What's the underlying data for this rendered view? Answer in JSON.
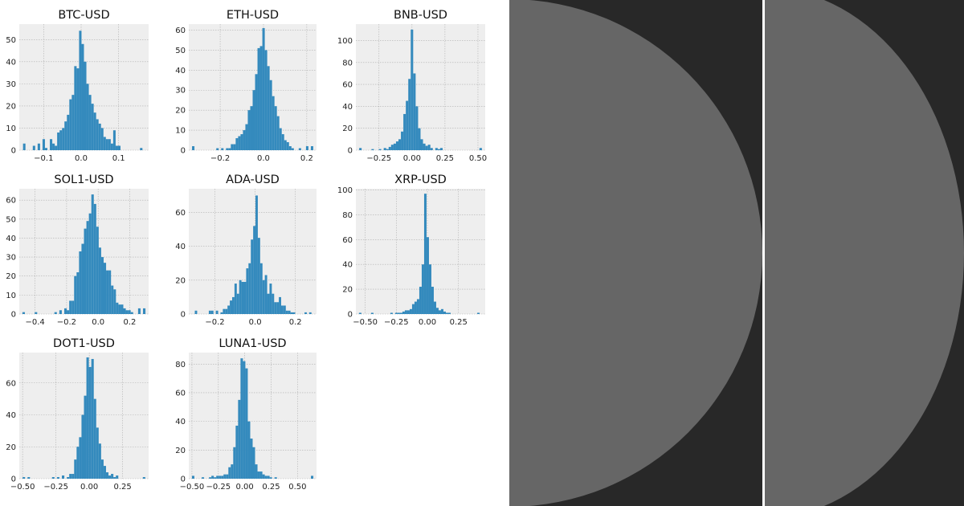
{
  "chart_data": [
    {
      "type": "histogram",
      "title": "BTC-USD",
      "color": "#348abd",
      "grid": true,
      "bins": [
        -0.155,
        -0.1485,
        -0.142,
        -0.1355,
        -0.129,
        -0.1225,
        -0.116,
        -0.1095,
        -0.103,
        -0.0965,
        -0.09,
        -0.0835,
        -0.077,
        -0.0705,
        -0.064,
        -0.0575,
        -0.051,
        -0.0445,
        -0.038,
        -0.0315,
        -0.025,
        -0.0185,
        -0.012,
        -0.0055,
        0.001,
        0.0075,
        0.014,
        0.0205,
        0.027,
        0.0335,
        0.04,
        0.0465,
        0.053,
        0.0595,
        0.066,
        0.0725,
        0.079,
        0.0855,
        0.092,
        0.0985,
        0.105,
        0.1115,
        0.118,
        0.1245,
        0.131,
        0.1375,
        0.144,
        0.1505,
        0.157,
        0.1635,
        0.17
      ],
      "values": [
        3,
        0,
        0,
        0,
        2,
        0,
        3,
        0,
        5,
        1,
        0,
        5,
        3,
        2,
        8,
        9,
        10,
        13,
        16,
        23,
        25,
        38,
        37,
        54,
        48,
        40,
        30,
        25,
        21,
        17,
        14,
        12,
        10,
        6,
        5,
        5,
        3,
        9,
        2,
        2,
        0,
        0,
        0,
        0,
        0,
        0,
        0,
        0,
        1,
        0
      ],
      "xlim": [
        -0.165,
        0.18
      ],
      "ylim": [
        0,
        57
      ],
      "xticks": [
        {
          "value": -0.1,
          "label": "−0.1"
        },
        {
          "value": 0,
          "label": "0.0"
        },
        0.1
      ],
      "yticks": [
        0,
        10,
        20,
        30,
        40,
        50
      ]
    },
    {
      "type": "histogram",
      "title": "ETH-USD",
      "color": "#348abd",
      "grid": true,
      "bins": [
        -0.33,
        -0.3188,
        -0.3076,
        -0.2964,
        -0.2852,
        -0.274,
        -0.2628,
        -0.2516,
        -0.2404,
        -0.2292,
        -0.218,
        -0.2068,
        -0.1956,
        -0.1844,
        -0.1732,
        -0.162,
        -0.1508,
        -0.1396,
        -0.1284,
        -0.1172,
        -0.106,
        -0.0948,
        -0.0836,
        -0.0724,
        -0.0612,
        -0.05,
        -0.0388,
        -0.0276,
        -0.0164,
        -0.0052,
        0.006,
        0.0172,
        0.0284,
        0.0396,
        0.0508,
        0.062,
        0.0732,
        0.0844,
        0.0956,
        0.1068,
        0.118,
        0.1292,
        0.1404,
        0.1516,
        0.1628,
        0.174,
        0.1852,
        0.1964,
        0.2076,
        0.2188,
        0.23
      ],
      "values": [
        2,
        0,
        0,
        0,
        0,
        0,
        0,
        0,
        0,
        0,
        1,
        0,
        1,
        0,
        1,
        1,
        3,
        3,
        6,
        7,
        8,
        10,
        13,
        20,
        22,
        30,
        38,
        51,
        52,
        61,
        50,
        42,
        35,
        27,
        22,
        17,
        11,
        8,
        5,
        4,
        2,
        1,
        0,
        0,
        1,
        0,
        0,
        2,
        0,
        2
      ],
      "xlim": [
        -0.345,
        0.245
      ],
      "ylim": [
        0,
        63
      ],
      "xticks": [
        {
          "value": -0.2,
          "label": "−0.2"
        },
        {
          "value": 0,
          "label": "0.0"
        },
        0.2
      ],
      "yticks": [
        0,
        10,
        20,
        30,
        40,
        50,
        60
      ]
    },
    {
      "type": "histogram",
      "title": "BNB-USD",
      "color": "#348abd",
      "grid": true,
      "bins": [
        -0.4,
        -0.3814,
        -0.3628,
        -0.3442,
        -0.3256,
        -0.307,
        -0.2884,
        -0.2698,
        -0.2512,
        -0.2326,
        -0.214,
        -0.1954,
        -0.1768,
        -0.1582,
        -0.1396,
        -0.121,
        -0.1024,
        -0.0838,
        -0.0652,
        -0.0466,
        -0.028,
        -0.0094,
        0.0092,
        0.0278,
        0.0464,
        0.065,
        0.0836,
        0.1022,
        0.1208,
        0.1394,
        0.158,
        0.1766,
        0.1952,
        0.2138,
        0.2324,
        0.251,
        0.2696,
        0.2882,
        0.3068,
        0.3254,
        0.344,
        0.3626,
        0.3812,
        0.3998,
        0.4184,
        0.437,
        0.4556,
        0.4742,
        0.4928,
        0.5114,
        0.53
      ],
      "values": [
        2,
        0,
        0,
        0,
        0,
        1,
        0,
        0,
        1,
        0,
        2,
        1,
        3,
        5,
        6,
        8,
        10,
        17,
        33,
        45,
        65,
        110,
        70,
        40,
        20,
        10,
        6,
        4,
        5,
        2,
        0,
        2,
        1,
        2,
        0,
        0,
        0,
        0,
        0,
        0,
        0,
        0,
        0,
        0,
        0,
        0,
        0,
        0,
        0,
        2
      ],
      "xlim": [
        -0.425,
        0.555
      ],
      "ylim": [
        0,
        115
      ],
      "xticks": [
        {
          "value": -0.25,
          "label": "−0.25"
        },
        {
          "value": 0,
          "label": "0.00"
        },
        0.25,
        {
          "value": 0.5,
          "label": "0.50"
        }
      ],
      "yticks": [
        0,
        20,
        40,
        60,
        80,
        100
      ]
    },
    {
      "type": "histogram",
      "title": "SOL1-USD",
      "color": "#348abd",
      "grid": true,
      "bins": [
        -0.48,
        -0.4644,
        -0.4488,
        -0.4332,
        -0.4176,
        -0.402,
        -0.3864,
        -0.3708,
        -0.3552,
        -0.3396,
        -0.324,
        -0.3084,
        -0.2928,
        -0.2772,
        -0.2616,
        -0.246,
        -0.2304,
        -0.2148,
        -0.1992,
        -0.1836,
        -0.168,
        -0.1524,
        -0.1368,
        -0.1212,
        -0.1056,
        -0.09,
        -0.0744,
        -0.0588,
        -0.0432,
        -0.0276,
        -0.012,
        0.0036,
        0.0192,
        0.0348,
        0.0504,
        0.066,
        0.0816,
        0.0972,
        0.1128,
        0.1284,
        0.144,
        0.1596,
        0.1752,
        0.1908,
        0.2064,
        0.222,
        0.2376,
        0.2532,
        0.2688,
        0.2844,
        0.3
      ],
      "values": [
        1,
        0,
        0,
        0,
        0,
        1,
        0,
        0,
        0,
        0,
        0,
        0,
        0,
        1,
        0,
        2,
        0,
        3,
        2,
        7,
        7,
        20,
        22,
        33,
        37,
        45,
        49,
        53,
        63,
        58,
        46,
        35,
        30,
        27,
        23,
        23,
        15,
        13,
        6,
        5,
        5,
        3,
        2,
        2,
        1,
        0,
        0,
        3,
        0,
        3
      ],
      "xlim": [
        -0.5,
        0.32
      ],
      "ylim": [
        0,
        66
      ],
      "xticks": [
        {
          "value": -0.4,
          "label": "−0.4"
        },
        {
          "value": -0.2,
          "label": "−0.2"
        },
        {
          "value": 0,
          "label": "0.0"
        },
        0.2
      ],
      "yticks": [
        0,
        10,
        20,
        30,
        40,
        50,
        60
      ]
    },
    {
      "type": "histogram",
      "title": "ADA-USD",
      "color": "#348abd",
      "grid": true,
      "bins": [
        -0.3,
        -0.2884,
        -0.2768,
        -0.2652,
        -0.2536,
        -0.242,
        -0.2304,
        -0.2188,
        -0.2072,
        -0.1956,
        -0.184,
        -0.1724,
        -0.1608,
        -0.1492,
        -0.1376,
        -0.126,
        -0.1144,
        -0.1028,
        -0.0912,
        -0.0796,
        -0.068,
        -0.0564,
        -0.0448,
        -0.0332,
        -0.0216,
        -0.01,
        0.0016,
        0.0132,
        0.0248,
        0.0364,
        0.048,
        0.0596,
        0.0712,
        0.0828,
        0.0944,
        0.106,
        0.1176,
        0.1292,
        0.1408,
        0.1524,
        0.164,
        0.1756,
        0.1872,
        0.1988,
        0.2104,
        0.222,
        0.2336,
        0.2452,
        0.2568,
        0.2684,
        0.28
      ],
      "values": [
        2,
        0,
        0,
        0,
        0,
        0,
        2,
        2,
        0,
        2,
        0,
        1,
        3,
        3,
        5,
        8,
        10,
        18,
        12,
        20,
        19,
        19,
        27,
        30,
        44,
        52,
        70,
        45,
        30,
        20,
        23,
        12,
        18,
        12,
        7,
        7,
        10,
        5,
        5,
        2,
        2,
        1,
        1,
        0,
        0,
        0,
        0,
        1,
        0,
        1
      ],
      "xlim": [
        -0.33,
        0.305
      ],
      "ylim": [
        0,
        74
      ],
      "xticks": [
        {
          "value": -0.2,
          "label": "−0.2"
        },
        {
          "value": 0,
          "label": "0.0"
        },
        0.2
      ],
      "yticks": [
        0,
        20,
        40,
        60
      ]
    },
    {
      "type": "histogram",
      "title": "XRP-USD",
      "color": "#348abd",
      "grid": true,
      "bins": [
        -0.55,
        -0.5306,
        -0.5112,
        -0.4918,
        -0.4724,
        -0.453,
        -0.4336,
        -0.4142,
        -0.3948,
        -0.3754,
        -0.356,
        -0.3366,
        -0.3172,
        -0.2978,
        -0.2784,
        -0.259,
        -0.2396,
        -0.2202,
        -0.2008,
        -0.1814,
        -0.162,
        -0.1426,
        -0.1232,
        -0.1038,
        -0.0844,
        -0.065,
        -0.0456,
        -0.0262,
        -0.0068,
        0.0126,
        0.032,
        0.0514,
        0.0708,
        0.0902,
        0.1096,
        0.129,
        0.1484,
        0.1678,
        0.1872,
        0.2066,
        0.226,
        0.2454,
        0.2648,
        0.2842,
        0.3036,
        0.323,
        0.3424,
        0.3618,
        0.3812,
        0.4006,
        0.42
      ],
      "values": [
        1,
        0,
        0,
        0,
        0,
        1,
        0,
        0,
        0,
        0,
        0,
        0,
        0,
        1,
        0,
        1,
        1,
        1,
        2,
        3,
        3,
        4,
        8,
        10,
        12,
        22,
        40,
        97,
        62,
        40,
        22,
        10,
        5,
        3,
        4,
        2,
        1,
        1,
        0,
        0,
        0,
        0,
        0,
        0,
        0,
        0,
        0,
        0,
        0,
        1
      ],
      "xlim": [
        -0.575,
        0.465
      ],
      "ylim": [
        0,
        101
      ],
      "xticks": [
        {
          "value": -0.5,
          "label": "−0.50"
        },
        {
          "value": -0.25,
          "label": "−0.25"
        },
        {
          "value": 0,
          "label": "0.00"
        },
        0.25
      ],
      "yticks": [
        0,
        20,
        40,
        60,
        80,
        100
      ]
    },
    {
      "type": "histogram",
      "title": "DOT1-USD",
      "color": "#348abd",
      "grid": true,
      "bins": [
        -0.5,
        -0.4816,
        -0.4632,
        -0.4448,
        -0.4264,
        -0.408,
        -0.3896,
        -0.3712,
        -0.3528,
        -0.3344,
        -0.316,
        -0.2976,
        -0.2792,
        -0.2608,
        -0.2424,
        -0.224,
        -0.2056,
        -0.1872,
        -0.1688,
        -0.1504,
        -0.132,
        -0.1136,
        -0.0952,
        -0.0768,
        -0.0584,
        -0.04,
        -0.0216,
        -0.0032,
        0.0152,
        0.0336,
        0.052,
        0.0704,
        0.0888,
        0.1072,
        0.1256,
        0.144,
        0.1624,
        0.1808,
        0.1992,
        0.2176,
        0.236,
        0.2544,
        0.2728,
        0.2912,
        0.3096,
        0.328,
        0.3464,
        0.3648,
        0.3832,
        0.4016,
        0.42
      ],
      "values": [
        1,
        0,
        1,
        0,
        0,
        0,
        0,
        0,
        0,
        0,
        0,
        0,
        1,
        0,
        1,
        0,
        2,
        0,
        1,
        3,
        3,
        12,
        20,
        26,
        40,
        52,
        76,
        70,
        75,
        50,
        32,
        22,
        12,
        8,
        4,
        2,
        3,
        1,
        2,
        0,
        0,
        0,
        0,
        0,
        0,
        0,
        0,
        0,
        0,
        1
      ],
      "xlim": [
        -0.525,
        0.445
      ],
      "ylim": [
        0,
        79
      ],
      "xticks": [
        {
          "value": -0.5,
          "label": "−0.50"
        },
        {
          "value": -0.25,
          "label": "−0.25"
        },
        {
          "value": 0,
          "label": "0.00"
        },
        0.25
      ],
      "yticks": [
        0,
        20,
        40,
        60
      ]
    },
    {
      "type": "histogram",
      "title": "LUNA1-USD",
      "color": "#348abd",
      "grid": true,
      "bins": [
        -0.5,
        -0.477,
        -0.454,
        -0.431,
        -0.408,
        -0.385,
        -0.362,
        -0.339,
        -0.316,
        -0.293,
        -0.27,
        -0.247,
        -0.224,
        -0.201,
        -0.178,
        -0.155,
        -0.132,
        -0.109,
        -0.086,
        -0.063,
        -0.04,
        -0.017,
        0.006,
        0.029,
        0.052,
        0.075,
        0.098,
        0.121,
        0.144,
        0.167,
        0.19,
        0.213,
        0.236,
        0.259,
        0.282,
        0.305,
        0.328,
        0.351,
        0.374,
        0.397,
        0.42,
        0.443,
        0.466,
        0.489,
        0.512,
        0.535,
        0.558,
        0.581,
        0.604,
        0.627,
        0.65
      ],
      "values": [
        2,
        0,
        0,
        0,
        1,
        0,
        0,
        1,
        2,
        1,
        2,
        2,
        2,
        3,
        3,
        8,
        10,
        22,
        37,
        55,
        84,
        82,
        77,
        40,
        28,
        22,
        10,
        5,
        5,
        3,
        2,
        2,
        1,
        0,
        1,
        0,
        0,
        0,
        0,
        0,
        0,
        0,
        0,
        0,
        0,
        0,
        0,
        0,
        0,
        2
      ],
      "xlim": [
        -0.53,
        0.68
      ],
      "ylim": [
        0,
        88
      ],
      "xticks": [
        {
          "value": -0.5,
          "label": "−0.50"
        },
        {
          "value": -0.25,
          "label": "−0.25"
        },
        {
          "value": 0,
          "label": "0.00"
        },
        0.25,
        {
          "value": 0.5,
          "label": "0.50"
        }
      ],
      "yticks": [
        0,
        20,
        40,
        60,
        80
      ]
    }
  ]
}
